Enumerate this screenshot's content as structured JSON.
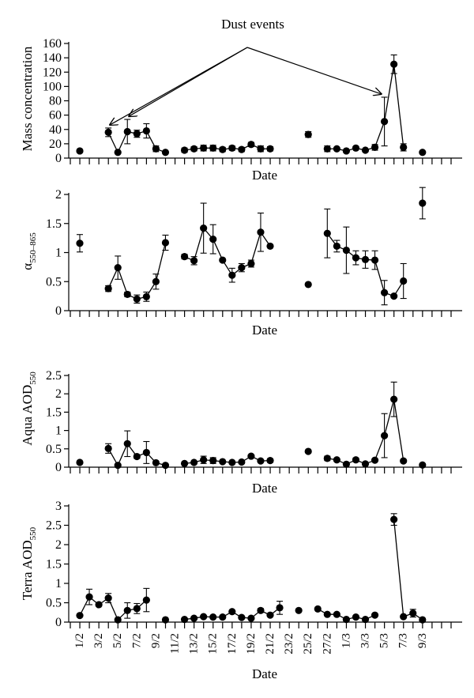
{
  "chart_data": [
    {
      "type": "scatter",
      "ylabel": "Mass concentration",
      "xlabel": "Date",
      "annotation": "Dust events",
      "ylim": [
        0,
        160
      ],
      "yticks": [
        "0",
        "20",
        "40",
        "60",
        "80",
        "100",
        "120",
        "140",
        "160"
      ],
      "points": [
        {
          "day": 1,
          "y": 10
        },
        {
          "day": 4,
          "y": 36,
          "err": 6
        },
        {
          "day": 5,
          "y": 8
        },
        {
          "day": 6,
          "y": 37,
          "err": 17
        },
        {
          "day": 7,
          "y": 34,
          "err": 5
        },
        {
          "day": 8,
          "y": 38,
          "err": 10
        },
        {
          "day": 9,
          "y": 13,
          "err": 4
        },
        {
          "day": 10,
          "y": 8
        },
        {
          "day": 12,
          "y": 11,
          "err": 3
        },
        {
          "day": 13,
          "y": 13,
          "err": 3
        },
        {
          "day": 14,
          "y": 14,
          "err": 4
        },
        {
          "day": 15,
          "y": 14,
          "err": 4
        },
        {
          "day": 16,
          "y": 12,
          "err": 3
        },
        {
          "day": 17,
          "y": 14,
          "err": 3
        },
        {
          "day": 18,
          "y": 12,
          "err": 3
        },
        {
          "day": 19,
          "y": 19,
          "err": 3
        },
        {
          "day": 20,
          "y": 13,
          "err": 4
        },
        {
          "day": 21,
          "y": 13,
          "err": 3
        },
        {
          "day": 25,
          "y": 33,
          "err": 4
        },
        {
          "day": 27,
          "y": 13,
          "err": 4
        },
        {
          "day": 28,
          "y": 13
        },
        {
          "day": 29,
          "y": 10
        },
        {
          "day": 30,
          "y": 14
        },
        {
          "day": 31,
          "y": 11
        },
        {
          "day": 32,
          "y": 15,
          "err": 4
        },
        {
          "day": 33,
          "y": 51,
          "err": 34
        },
        {
          "day": 34,
          "y": 131,
          "err": 13
        },
        {
          "day": 35,
          "y": 15,
          "err": 5
        },
        {
          "day": 37,
          "y": 8
        }
      ],
      "segments": [
        [
          4,
          5,
          6,
          7,
          8,
          9,
          10
        ],
        [
          12,
          13,
          14,
          15,
          16,
          17,
          18,
          19,
          20,
          21
        ],
        [
          27,
          28,
          29,
          30,
          31,
          32,
          33,
          34,
          35
        ]
      ],
      "arrows": [
        4,
        6,
        33
      ]
    },
    {
      "type": "scatter",
      "ylabel": "α",
      "ylabel_sub": "550–865",
      "xlabel": "Date",
      "ylim": [
        0,
        2
      ],
      "yticks": [
        "0",
        "0.5",
        "1",
        "1.5",
        "2"
      ],
      "points": [
        {
          "day": 1,
          "y": 1.16,
          "err": 0.15
        },
        {
          "day": 4,
          "y": 0.38,
          "err": 0.05
        },
        {
          "day": 5,
          "y": 0.74,
          "err": 0.2
        },
        {
          "day": 6,
          "y": 0.28,
          "err": 0.04
        },
        {
          "day": 7,
          "y": 0.2,
          "err": 0.07
        },
        {
          "day": 8,
          "y": 0.24,
          "err": 0.08
        },
        {
          "day": 9,
          "y": 0.5,
          "err": 0.13
        },
        {
          "day": 10,
          "y": 1.17,
          "err": 0.13
        },
        {
          "day": 12,
          "y": 0.93,
          "err": 0.04
        },
        {
          "day": 13,
          "y": 0.86,
          "err": 0.07
        },
        {
          "day": 14,
          "y": 1.42,
          "err": 0.43
        },
        {
          "day": 15,
          "y": 1.23,
          "err": 0.25
        },
        {
          "day": 16,
          "y": 0.87
        },
        {
          "day": 17,
          "y": 0.61,
          "err": 0.12
        },
        {
          "day": 18,
          "y": 0.74,
          "err": 0.07
        },
        {
          "day": 19,
          "y": 0.81,
          "err": 0.06
        },
        {
          "day": 20,
          "y": 1.35,
          "err": 0.33
        },
        {
          "day": 21,
          "y": 1.11
        },
        {
          "day": 25,
          "y": 0.45
        },
        {
          "day": 27,
          "y": 1.33,
          "err": 0.42
        },
        {
          "day": 28,
          "y": 1.11,
          "err": 0.1
        },
        {
          "day": 29,
          "y": 1.04,
          "err": 0.4
        },
        {
          "day": 30,
          "y": 0.91,
          "err": 0.12
        },
        {
          "day": 31,
          "y": 0.88,
          "err": 0.15
        },
        {
          "day": 32,
          "y": 0.87,
          "err": 0.16
        },
        {
          "day": 33,
          "y": 0.31,
          "err": 0.21
        },
        {
          "day": 34,
          "y": 0.25
        },
        {
          "day": 35,
          "y": 0.51,
          "err": 0.3
        },
        {
          "day": 37,
          "y": 1.85,
          "err": 0.27
        }
      ],
      "segments": [
        [
          4,
          5,
          6,
          7,
          8,
          9,
          10
        ],
        [
          12,
          13,
          14,
          15,
          16,
          17,
          18,
          19,
          20,
          21
        ],
        [
          27,
          28,
          29,
          30,
          31,
          32,
          33,
          34,
          35
        ]
      ]
    },
    {
      "type": "scatter",
      "ylabel": "Aqua AOD",
      "ylabel_sub": "550",
      "xlabel": "Date",
      "ylim": [
        0,
        2.5
      ],
      "yticks": [
        "0",
        "0.5",
        "1",
        "1.5",
        "2",
        "2.5"
      ],
      "points": [
        {
          "day": 1,
          "y": 0.13,
          "err": 0.03
        },
        {
          "day": 4,
          "y": 0.51,
          "err": 0.13
        },
        {
          "day": 5,
          "y": 0.05
        },
        {
          "day": 6,
          "y": 0.64,
          "err": 0.35
        },
        {
          "day": 7,
          "y": 0.29,
          "err": 0.05
        },
        {
          "day": 8,
          "y": 0.4,
          "err": 0.3
        },
        {
          "day": 9,
          "y": 0.12
        },
        {
          "day": 10,
          "y": 0.05
        },
        {
          "day": 12,
          "y": 0.1
        },
        {
          "day": 13,
          "y": 0.13
        },
        {
          "day": 14,
          "y": 0.2,
          "err": 0.1
        },
        {
          "day": 15,
          "y": 0.18,
          "err": 0.08
        },
        {
          "day": 16,
          "y": 0.15
        },
        {
          "day": 17,
          "y": 0.13
        },
        {
          "day": 18,
          "y": 0.14
        },
        {
          "day": 19,
          "y": 0.3,
          "err": 0.03
        },
        {
          "day": 20,
          "y": 0.17
        },
        {
          "day": 21,
          "y": 0.18,
          "err": 0.05
        },
        {
          "day": 25,
          "y": 0.43
        },
        {
          "day": 27,
          "y": 0.24,
          "err": 0.06
        },
        {
          "day": 28,
          "y": 0.2
        },
        {
          "day": 29,
          "y": 0.08
        },
        {
          "day": 30,
          "y": 0.2,
          "err": 0.05
        },
        {
          "day": 31,
          "y": 0.09
        },
        {
          "day": 32,
          "y": 0.19
        },
        {
          "day": 33,
          "y": 0.86,
          "err": 0.6
        },
        {
          "day": 34,
          "y": 1.85,
          "err": 0.47
        },
        {
          "day": 35,
          "y": 0.17,
          "err": 0.04
        },
        {
          "day": 37,
          "y": 0.06
        }
      ],
      "segments": [
        [
          4,
          5,
          6,
          7,
          8,
          9,
          10
        ],
        [
          12,
          13,
          14,
          15,
          16,
          17,
          18,
          19,
          20,
          21
        ],
        [
          27,
          28,
          29,
          30,
          31,
          32,
          33,
          34,
          35
        ]
      ]
    },
    {
      "type": "scatter",
      "ylabel": "Terra AOD",
      "ylabel_sub": "550",
      "xlabel": "Date",
      "ylim": [
        0,
        3
      ],
      "yticks": [
        "0",
        "0.5",
        "1",
        "1.5",
        "2",
        "2.5",
        "3"
      ],
      "x_tick_labels": [
        "1/2",
        "3/2",
        "5/2",
        "7/2",
        "9/2",
        "11/2",
        "13/2",
        "15/2",
        "17/2",
        "19/2",
        "21/2",
        "23/2",
        "25/2",
        "27/2",
        "1/3",
        "3/3",
        "5/3",
        "7/3",
        "9/3"
      ],
      "points": [
        {
          "day": 1,
          "y": 0.17
        },
        {
          "day": 2,
          "y": 0.65,
          "err": 0.2
        },
        {
          "day": 3,
          "y": 0.45
        },
        {
          "day": 4,
          "y": 0.62,
          "err": 0.12
        },
        {
          "day": 5,
          "y": 0.06
        },
        {
          "day": 6,
          "y": 0.3,
          "err": 0.2
        },
        {
          "day": 7,
          "y": 0.35,
          "err": 0.13
        },
        {
          "day": 8,
          "y": 0.57,
          "err": 0.3
        },
        {
          "day": 10,
          "y": 0.06
        },
        {
          "day": 12,
          "y": 0.07
        },
        {
          "day": 13,
          "y": 0.1
        },
        {
          "day": 14,
          "y": 0.14
        },
        {
          "day": 15,
          "y": 0.13
        },
        {
          "day": 16,
          "y": 0.13
        },
        {
          "day": 17,
          "y": 0.27
        },
        {
          "day": 18,
          "y": 0.12
        },
        {
          "day": 19,
          "y": 0.1
        },
        {
          "day": 20,
          "y": 0.3,
          "err": 0.05
        },
        {
          "day": 21,
          "y": 0.18
        },
        {
          "day": 22,
          "y": 0.37,
          "err": 0.17
        },
        {
          "day": 24,
          "y": 0.3
        },
        {
          "day": 26,
          "y": 0.34
        },
        {
          "day": 27,
          "y": 0.2
        },
        {
          "day": 28,
          "y": 0.2
        },
        {
          "day": 29,
          "y": 0.07
        },
        {
          "day": 30,
          "y": 0.13
        },
        {
          "day": 31,
          "y": 0.07
        },
        {
          "day": 32,
          "y": 0.18
        },
        {
          "day": 34,
          "y": 2.65,
          "err": 0.15
        },
        {
          "day": 35,
          "y": 0.14
        },
        {
          "day": 36,
          "y": 0.23,
          "err": 0.1
        },
        {
          "day": 37,
          "y": 0.06
        }
      ],
      "segments": [
        [
          1,
          2,
          3,
          4,
          5,
          6,
          7,
          8
        ],
        [
          12,
          13,
          14,
          15,
          16,
          17,
          18,
          19,
          20,
          21,
          22
        ],
        [
          26,
          27,
          28,
          29,
          30,
          31,
          32
        ],
        [
          34,
          35,
          36,
          37
        ]
      ]
    }
  ]
}
